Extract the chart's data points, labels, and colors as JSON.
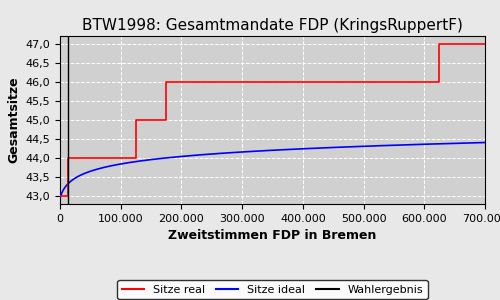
{
  "title": "BTW1998: Gesamtmandate FDP (KringsRuppertF)",
  "xlabel": "Zweitstimmen FDP in Bremen",
  "ylabel": "Gesamtsitze",
  "xlim": [
    0,
    700000
  ],
  "ylim": [
    42.8,
    47.2
  ],
  "yticks": [
    43.0,
    43.5,
    44.0,
    44.5,
    45.0,
    45.5,
    46.0,
    46.5,
    47.0
  ],
  "xticks": [
    0,
    100000,
    200000,
    300000,
    400000,
    500000,
    600000,
    700000
  ],
  "wahlergebnis_x": 13000,
  "step_x": [
    0,
    13000,
    13000,
    50000,
    50000,
    125000,
    125000,
    175000,
    175000,
    300000,
    300000,
    500000,
    500000,
    625000,
    625000,
    700000
  ],
  "step_y": [
    43.0,
    43.0,
    44.0,
    44.0,
    44.0,
    44.0,
    45.0,
    45.0,
    46.0,
    46.0,
    46.0,
    46.0,
    46.0,
    46.0,
    47.0,
    47.0
  ],
  "ideal_a": 42.95,
  "ideal_b": 0.295,
  "ideal_scale": 5000.0,
  "bg_color": "#d0d0d0",
  "fig_facecolor": "#e8e8e8",
  "legend_labels": [
    "Sitze real",
    "Sitze ideal",
    "Wahlergebnis"
  ],
  "title_fontsize": 11,
  "axis_label_fontsize": 9,
  "tick_fontsize": 8
}
